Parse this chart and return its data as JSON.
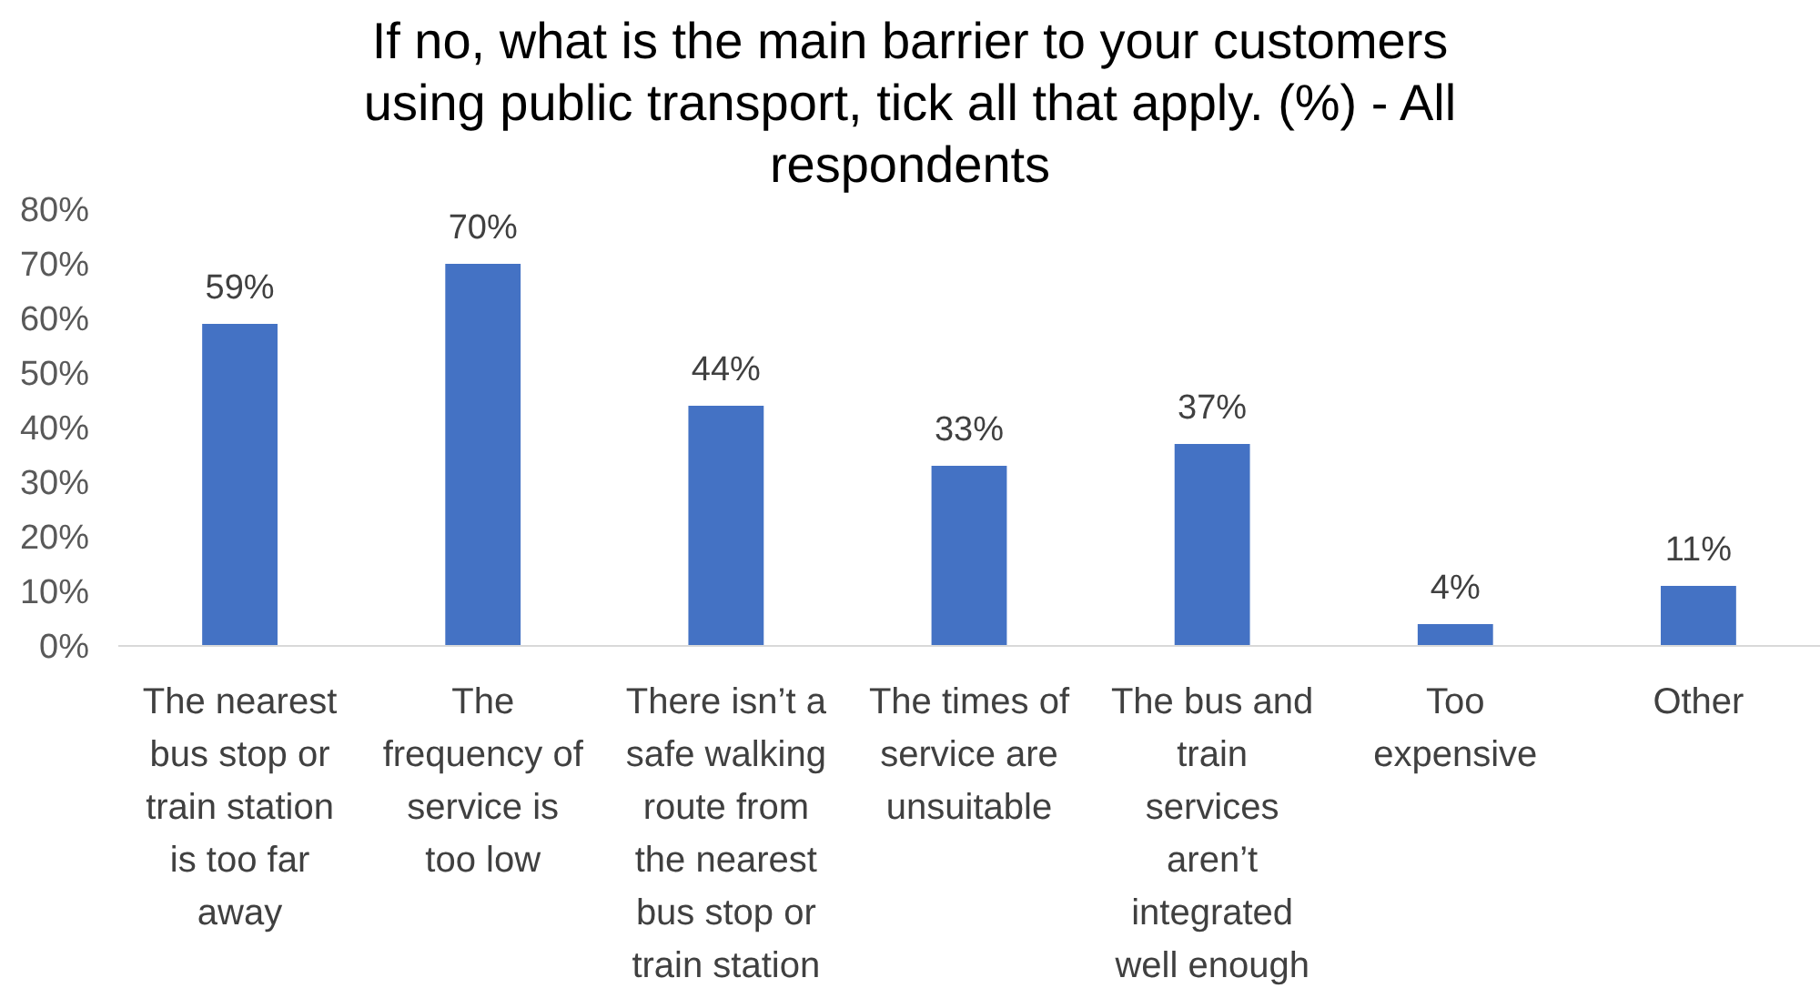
{
  "chart_data": {
    "type": "bar",
    "title": "If no, what is the main barrier to your customers using public transport, tick all that apply. (%) - All respondents",
    "categories": [
      "The nearest bus stop or train station is too far away",
      "The frequency of service is too low",
      "There isn’t a safe walking route from the nearest bus stop or train station",
      "The times of service are unsuitable",
      "The bus and train services aren’t integrated well enough",
      "Too expensive",
      "Other"
    ],
    "values": [
      59,
      70,
      44,
      33,
      37,
      4,
      11
    ],
    "color": "#4472c4",
    "data_labels": true,
    "value_labels": [
      "59%",
      "70%",
      "44%",
      "33%",
      "37%",
      "4%",
      "11%"
    ],
    "ylim": [
      0,
      80
    ],
    "yticks": [
      {
        "value": 0,
        "label": "0%"
      },
      {
        "value": 10,
        "label": "10%"
      },
      {
        "value": 20,
        "label": "20%"
      },
      {
        "value": 30,
        "label": "30%"
      },
      {
        "value": 40,
        "label": "40%"
      },
      {
        "value": 50,
        "label": "50%"
      },
      {
        "value": 60,
        "label": "60%"
      },
      {
        "value": 70,
        "label": "70%"
      },
      {
        "value": 80,
        "label": "80%"
      }
    ],
    "grid": false
  }
}
